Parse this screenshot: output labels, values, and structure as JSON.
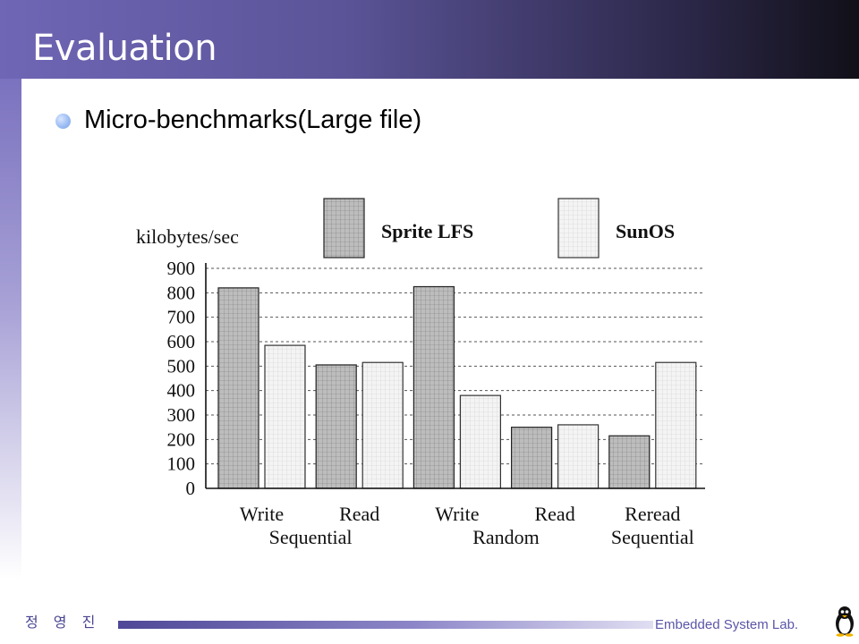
{
  "slide": {
    "title": "Evaluation",
    "bullet": "Micro-benchmarks(Large file)"
  },
  "footer": {
    "author": "정 영 진",
    "lab": "Embedded System Lab."
  },
  "icons": {
    "bullet": "bullet-dot-icon",
    "mascot": "penguin-icon"
  },
  "colors": {
    "title_bar_start": "#6f66b5",
    "title_bar_end": "#111018",
    "sprite_fill": "#bdbdbd",
    "sunos_fill": "#f2f2f2"
  },
  "chart_data": {
    "type": "bar",
    "ylabel": "kilobytes/sec",
    "ylim": [
      0,
      900
    ],
    "yticks": [
      0,
      100,
      200,
      300,
      400,
      500,
      600,
      700,
      800,
      900
    ],
    "grid": "horizontal dashed",
    "legend_position": "top",
    "categories": [
      {
        "label": "Write",
        "group": "Sequential"
      },
      {
        "label": "Read",
        "group": "Sequential"
      },
      {
        "label": "Write",
        "group": "Random"
      },
      {
        "label": "Read",
        "group": "Random"
      },
      {
        "label": "Reread",
        "group": "Sequential"
      }
    ],
    "groups": [
      "Sequential",
      "Random",
      "Sequential"
    ],
    "series": [
      {
        "name": "Sprite LFS",
        "values": [
          820,
          505,
          825,
          250,
          215
        ]
      },
      {
        "name": "SunOS",
        "values": [
          585,
          515,
          380,
          260,
          515
        ]
      }
    ]
  }
}
